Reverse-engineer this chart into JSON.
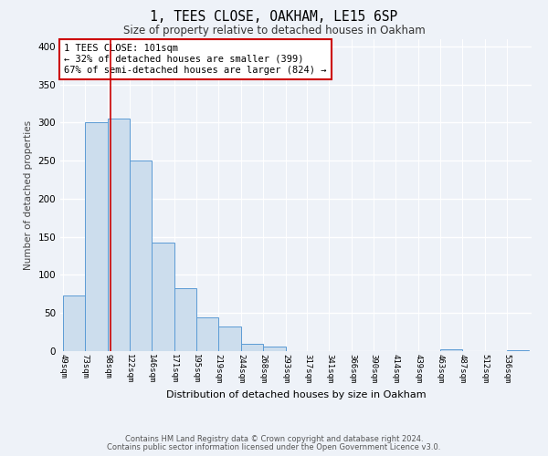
{
  "title": "1, TEES CLOSE, OAKHAM, LE15 6SP",
  "subtitle": "Size of property relative to detached houses in Oakham",
  "xlabel": "Distribution of detached houses by size in Oakham",
  "ylabel": "Number of detached properties",
  "bar_values": [
    73,
    300,
    305,
    250,
    143,
    83,
    44,
    32,
    9,
    6,
    0,
    0,
    0,
    0,
    0,
    0,
    0,
    2,
    0,
    0,
    1
  ],
  "bar_labels": [
    "49sqm",
    "73sqm",
    "98sqm",
    "122sqm",
    "146sqm",
    "171sqm",
    "195sqm",
    "219sqm",
    "244sqm",
    "268sqm",
    "293sqm",
    "317sqm",
    "341sqm",
    "366sqm",
    "390sqm",
    "414sqm",
    "439sqm",
    "463sqm",
    "487sqm",
    "512sqm",
    "536sqm"
  ],
  "ylim": [
    0,
    410
  ],
  "yticks": [
    0,
    50,
    100,
    150,
    200,
    250,
    300,
    350,
    400
  ],
  "bar_color": "#ccdded",
  "bar_edge_color": "#5b9bd5",
  "vline_x": 101,
  "vline_color": "#cc0000",
  "annotation_text": "1 TEES CLOSE: 101sqm\n← 32% of detached houses are smaller (399)\n67% of semi-detached houses are larger (824) →",
  "annotation_box_color": "white",
  "annotation_box_edge_color": "#cc0000",
  "footer_line1": "Contains HM Land Registry data © Crown copyright and database right 2024.",
  "footer_line2": "Contains public sector information licensed under the Open Government Licence v3.0.",
  "background_color": "#eef2f8",
  "bin_edges": [
    49,
    73,
    98,
    122,
    146,
    171,
    195,
    219,
    244,
    268,
    293,
    317,
    341,
    366,
    390,
    414,
    439,
    463,
    487,
    512,
    536,
    560
  ]
}
